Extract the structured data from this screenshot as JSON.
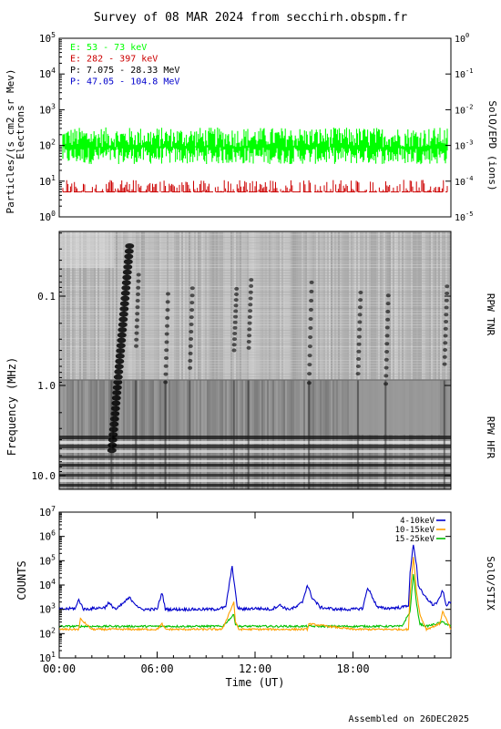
{
  "page": {
    "title": "Survey of 08 MAR 2024 from secchirh.obspm.fr",
    "footer": "Assembled on 26DEC2025"
  },
  "chart_data": [
    {
      "type": "line",
      "panel": "particles",
      "ylabel": "Particles/(s cm2 sr Mev)",
      "ylabel2": "Electrons",
      "right_label": "SolO/EPD (ions)",
      "yscale": "log",
      "ylim": [
        1,
        100000
      ],
      "yticks": [
        "10^0",
        "10^1",
        "10^2",
        "10^3",
        "10^4",
        "10^5"
      ],
      "y2lim": [
        1e-05,
        1
      ],
      "y2ticks": [
        "10^-5",
        "10^-4",
        "10^-3",
        "10^-2",
        "10^-1",
        "10^0"
      ],
      "legend_placement": "top-left",
      "series": [
        {
          "name": "E: 53 - 73 keV",
          "color": "#00ff00",
          "level": 90,
          "low": 30,
          "high": 320
        },
        {
          "name": "E: 282 - 397 keV",
          "color": "#cc0000",
          "level": 5,
          "high": 11,
          "sparse": true
        },
        {
          "name": "P: 7.075 - 28.33 MeV",
          "color": "#000000"
        },
        {
          "name": "P: 47.05 - 104.8 MeV",
          "color": "#0000cc"
        }
      ]
    },
    {
      "type": "heatmap",
      "panel": "radio",
      "ylabel": "Frequency (MHz)",
      "yscale": "log",
      "yticks": [
        "0.1",
        "1.0",
        "10.0"
      ],
      "right_labels": [
        "RPW TNR",
        "RPW HFR"
      ],
      "bursts_utc_hours": [
        3.2,
        4.7,
        6.5,
        8.0,
        10.7,
        11.6,
        15.3,
        18.3,
        20.0,
        23.6
      ]
    },
    {
      "type": "line",
      "panel": "xray",
      "ylabel": "COUNTS",
      "right_label": "SolO/STIX",
      "xlabel": "Time (UT)",
      "xticks": [
        "00:00",
        "06:00",
        "12:00",
        "18:00"
      ],
      "xlim_hours": [
        0,
        24
      ],
      "yscale": "log",
      "ylim": [
        10,
        10000000
      ],
      "yticks": [
        "10^1",
        "10^2",
        "10^3",
        "10^4",
        "10^5",
        "10^6",
        "10^7"
      ],
      "legend_placement": "top-right",
      "series": [
        {
          "name": "4-10keV",
          "color": "#0000cc",
          "x": [
            0,
            1,
            1.2,
            1.5,
            2.8,
            3,
            3.5,
            4.3,
            5,
            6,
            6.3,
            6.5,
            7,
            8,
            9,
            9.5,
            10.2,
            10.6,
            10.8,
            10.9,
            11.2,
            12,
            13,
            13.5,
            14,
            14.5,
            14.9,
            15.2,
            15.5,
            16,
            17,
            18,
            18.6,
            18.9,
            19.5,
            20,
            21,
            21.4,
            21.5,
            21.7,
            21.9,
            22,
            22.3,
            22.6,
            22.9,
            23.2,
            23.5,
            23.7,
            24
          ],
          "y": [
            1000,
            1100,
            2500,
            1000,
            1200,
            1800,
            1000,
            3000,
            1000,
            1000,
            5000,
            1000,
            1000,
            1000,
            1000,
            1000,
            1200,
            60000,
            5000,
            1200,
            1000,
            1100,
            1000,
            1500,
            1000,
            1200,
            2000,
            10000,
            3000,
            1200,
            1000,
            1000,
            1100,
            8000,
            1200,
            1100,
            1200,
            1500,
            30000,
            500000,
            60000,
            10000,
            4000,
            2500,
            1500,
            2000,
            6000,
            1500,
            2000
          ]
        },
        {
          "name": "10-15keV",
          "color": "#ffa000",
          "x": [
            0,
            1.2,
            1.3,
            2,
            3,
            6,
            6.3,
            6.5,
            10,
            10.7,
            10.8,
            11,
            15.2,
            15.3,
            18,
            18.9,
            19,
            21.4,
            21.5,
            21.7,
            21.9,
            22.1,
            22.5,
            23.3,
            23.5,
            24
          ],
          "y": [
            150,
            150,
            400,
            150,
            150,
            150,
            250,
            150,
            150,
            2000,
            300,
            150,
            150,
            250,
            150,
            150,
            150,
            150,
            4000,
            150000,
            5000,
            600,
            150,
            250,
            800,
            150
          ]
        },
        {
          "name": "15-25keV",
          "color": "#00c000",
          "x": [
            0,
            3,
            6,
            10,
            10.7,
            10.8,
            11,
            15,
            18,
            21,
            21.5,
            21.7,
            21.9,
            22.1,
            22.5,
            23.5,
            24
          ],
          "y": [
            200,
            200,
            200,
            200,
            600,
            250,
            200,
            200,
            200,
            200,
            800,
            30000,
            1500,
            250,
            200,
            300,
            200
          ]
        }
      ]
    }
  ]
}
